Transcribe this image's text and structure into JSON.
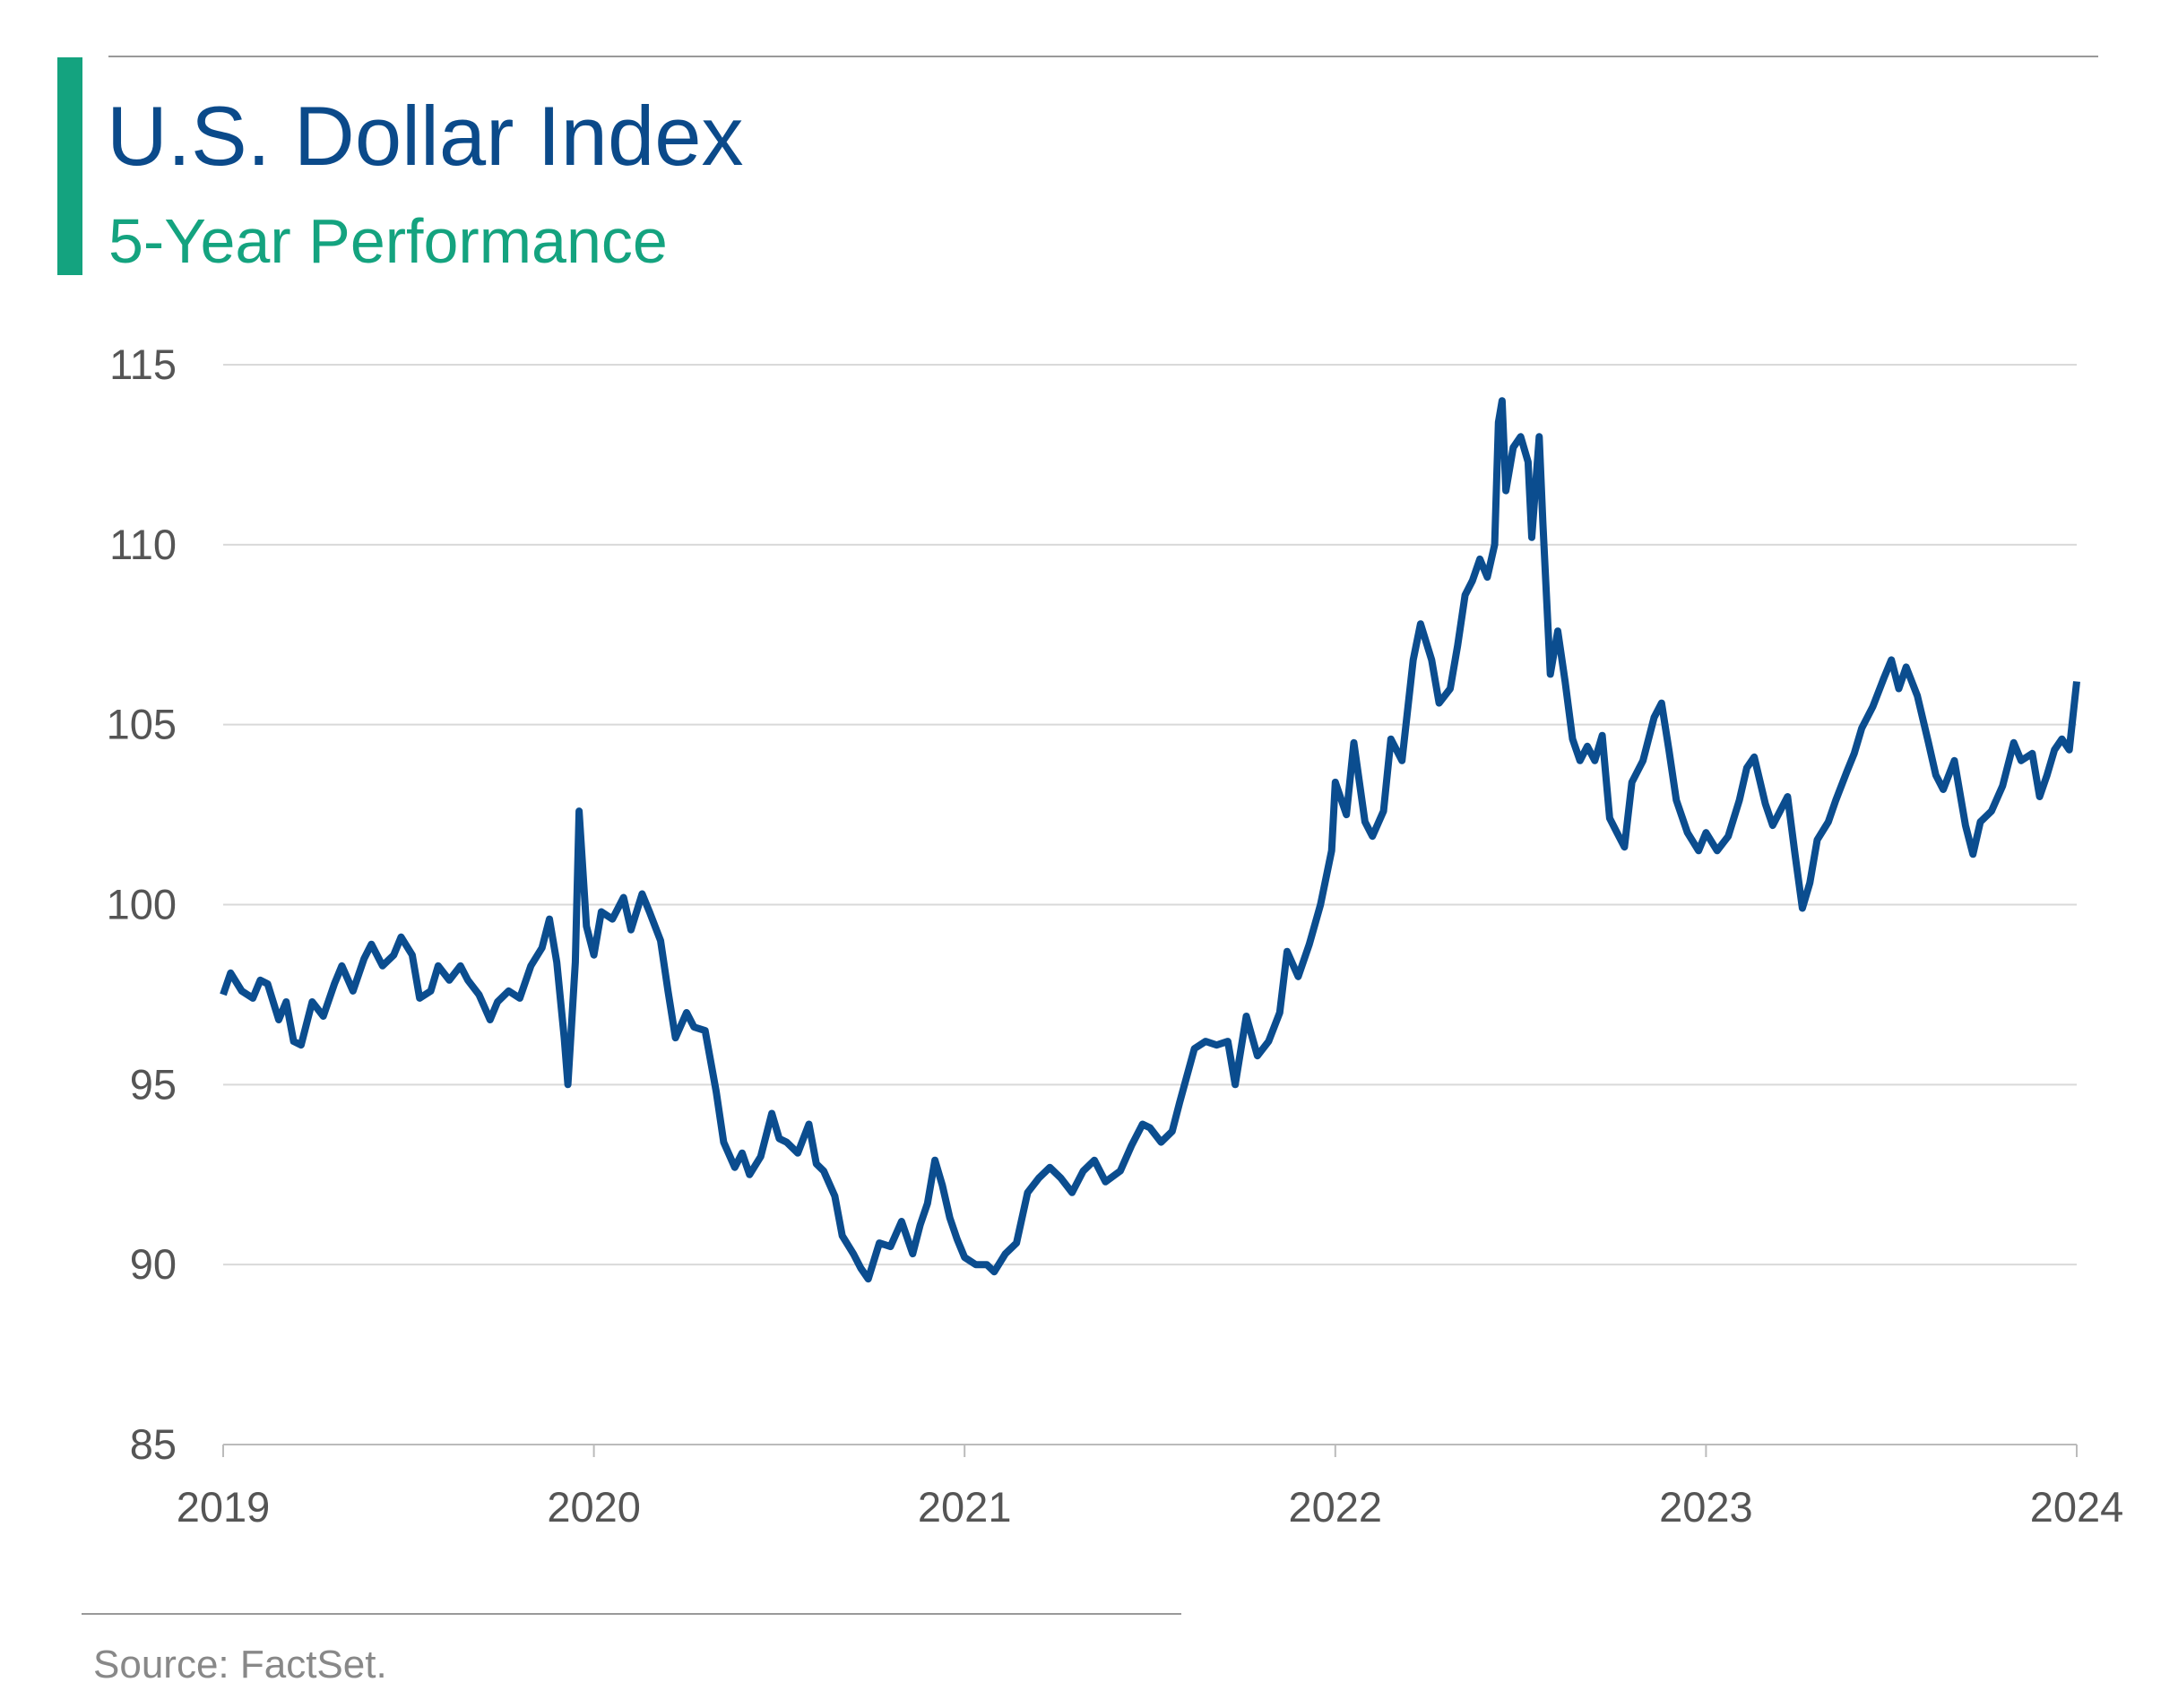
{
  "chart_data": {
    "type": "line",
    "title": "U.S. Dollar Index",
    "subtitle": "5-Year Performance",
    "source": "Source: FactSet.",
    "xlim": [
      2019,
      2024
    ],
    "xticks": [
      2019,
      2020,
      2021,
      2022,
      2023,
      2024
    ],
    "ylim": [
      85,
      115
    ],
    "yticks": [
      85,
      90,
      95,
      100,
      105,
      110,
      115
    ],
    "grid": true,
    "series": [
      {
        "name": "U.S. Dollar Index",
        "color": "#0b4d8f",
        "x": [
          2019.0,
          2019.02,
          2019.05,
          2019.08,
          2019.1,
          2019.12,
          2019.15,
          2019.17,
          2019.19,
          2019.21,
          2019.24,
          2019.27,
          2019.3,
          2019.32,
          2019.35,
          2019.38,
          2019.4,
          2019.43,
          2019.46,
          2019.48,
          2019.51,
          2019.53,
          2019.56,
          2019.58,
          2019.61,
          2019.64,
          2019.66,
          2019.69,
          2019.72,
          2019.74,
          2019.77,
          2019.8,
          2019.83,
          2019.86,
          2019.88,
          2019.9,
          2019.92,
          2019.93,
          2019.95,
          2019.96,
          2019.98,
          2020.0,
          2020.02,
          2020.05,
          2020.08,
          2020.1,
          2020.13,
          2020.15,
          2020.18,
          2020.2,
          2020.22,
          2020.25,
          2020.27,
          2020.3,
          2020.33,
          2020.35,
          2020.38,
          2020.4,
          2020.42,
          2020.45,
          2020.48,
          2020.5,
          2020.52,
          2020.55,
          2020.58,
          2020.6,
          2020.62,
          2020.65,
          2020.67,
          2020.7,
          2020.72,
          2020.74,
          2020.77,
          2020.8,
          2020.83,
          2020.86,
          2020.88,
          2020.9,
          2020.92,
          2020.94,
          2020.96,
          2020.98,
          2021.0,
          2021.03,
          2021.06,
          2021.08,
          2021.11,
          2021.14,
          2021.17,
          2021.2,
          2021.23,
          2021.26,
          2021.29,
          2021.32,
          2021.35,
          2021.38,
          2021.42,
          2021.45,
          2021.48,
          2021.5,
          2021.53,
          2021.56,
          2021.58,
          2021.62,
          2021.65,
          2021.68,
          2021.71,
          2021.73,
          2021.76,
          2021.79,
          2021.82,
          2021.85,
          2021.87,
          2021.9,
          2021.93,
          2021.96,
          2021.99,
          2022.0,
          2022.03,
          2022.05,
          2022.08,
          2022.1,
          2022.13,
          2022.15,
          2022.18,
          2022.21,
          2022.23,
          2022.26,
          2022.28,
          2022.31,
          2022.33,
          2022.35,
          2022.37,
          2022.39,
          2022.41,
          2022.43,
          2022.44,
          2022.45,
          2022.46,
          2022.48,
          2022.5,
          2022.52,
          2022.53,
          2022.55,
          2022.56,
          2022.58,
          2022.6,
          2022.62,
          2022.64,
          2022.66,
          2022.68,
          2022.7,
          2022.72,
          2022.74,
          2022.76,
          2022.78,
          2022.8,
          2022.83,
          2022.86,
          2022.88,
          2022.9,
          2022.92,
          2022.95,
          2022.98,
          2023.0,
          2023.03,
          2023.06,
          2023.09,
          2023.11,
          2023.13,
          2023.16,
          2023.18,
          2023.22,
          2023.24,
          2023.26,
          2023.28,
          2023.3,
          2023.33,
          2023.35,
          2023.38,
          2023.4,
          2023.42,
          2023.45,
          2023.48,
          2023.5,
          2023.52,
          2023.54,
          2023.57,
          2023.6,
          2023.62,
          2023.64,
          2023.67,
          2023.7,
          2023.72,
          2023.74,
          2023.77,
          2023.8,
          2023.83,
          2023.85,
          2023.88,
          2023.9,
          2023.92,
          2023.94,
          2023.96,
          2023.98,
          2024.0
        ],
        "values": [
          97.5,
          98.1,
          97.6,
          97.4,
          97.9,
          97.8,
          96.8,
          97.3,
          96.2,
          96.1,
          97.3,
          96.9,
          97.8,
          98.3,
          97.6,
          98.5,
          98.9,
          98.3,
          98.6,
          99.1,
          98.6,
          97.4,
          97.6,
          98.3,
          97.9,
          98.3,
          97.9,
          97.5,
          96.8,
          97.3,
          97.6,
          97.4,
          98.3,
          98.8,
          99.6,
          98.4,
          96.3,
          95.0,
          98.4,
          102.6,
          99.4,
          98.6,
          99.8,
          99.6,
          100.2,
          99.3,
          100.3,
          99.8,
          99.0,
          97.6,
          96.3,
          97.0,
          96.6,
          96.5,
          94.8,
          93.4,
          92.7,
          93.1,
          92.5,
          93.0,
          94.2,
          93.5,
          93.4,
          93.1,
          93.9,
          92.8,
          92.6,
          91.9,
          90.8,
          90.3,
          89.9,
          89.6,
          90.6,
          90.5,
          91.2,
          90.3,
          91.1,
          91.7,
          92.9,
          92.2,
          91.3,
          90.7,
          90.2,
          90.0,
          90.0,
          89.8,
          90.3,
          90.6,
          92.0,
          92.4,
          92.7,
          92.4,
          92.0,
          92.6,
          92.9,
          92.3,
          92.6,
          93.3,
          93.9,
          93.8,
          93.4,
          93.7,
          94.5,
          96.0,
          96.2,
          96.1,
          96.2,
          95.0,
          96.9,
          95.8,
          96.2,
          97.0,
          98.7,
          98.0,
          98.9,
          100.0,
          101.5,
          103.4,
          102.5,
          104.5,
          102.3,
          101.9,
          102.6,
          104.6,
          104.0,
          106.8,
          107.8,
          106.8,
          105.6,
          106.0,
          107.2,
          108.6,
          109.0,
          109.6,
          109.1,
          110.0,
          113.4,
          114.0,
          111.5,
          112.7,
          113.0,
          112.3,
          110.2,
          113.0,
          110.6,
          106.4,
          107.6,
          106.2,
          104.6,
          104.0,
          104.4,
          104.0,
          104.7,
          102.4,
          102.0,
          101.6,
          103.4,
          104.0,
          105.2,
          105.6,
          104.3,
          102.9,
          102.0,
          101.5,
          102.0,
          101.5,
          101.9,
          102.9,
          103.8,
          104.1,
          102.8,
          102.2,
          103.0,
          101.4,
          99.9,
          100.6,
          101.8,
          102.3,
          102.9,
          103.7,
          104.2,
          104.9,
          105.5,
          106.3,
          106.8,
          106.0,
          106.6,
          105.8,
          104.5,
          103.6,
          103.2,
          104.0,
          102.2,
          101.4,
          102.3,
          102.6,
          103.3,
          104.5,
          104.0,
          104.2,
          103.0,
          103.6,
          104.3,
          104.6,
          104.3,
          106.2
        ]
      }
    ]
  }
}
